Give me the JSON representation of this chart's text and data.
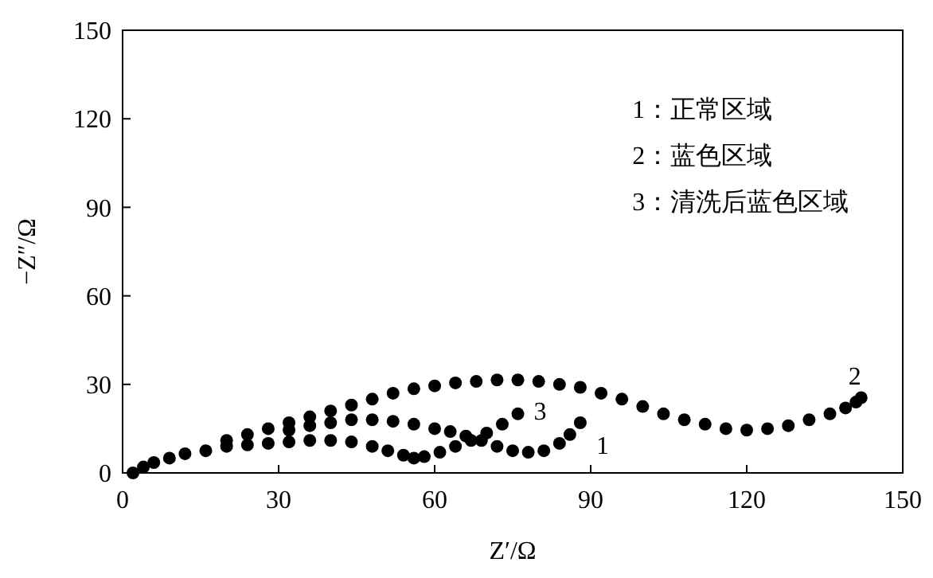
{
  "chart_data": {
    "type": "scatter",
    "xlabel": "Z′/Ω",
    "ylabel": "−Z″/Ω",
    "xlim": [
      0,
      150
    ],
    "ylim": [
      0,
      150
    ],
    "xticks": [
      0,
      30,
      60,
      90,
      120,
      150
    ],
    "yticks": [
      0,
      30,
      60,
      90,
      120,
      150
    ],
    "grid": false,
    "marker": "circle",
    "annotations": [
      "1：正常区域",
      "2：蓝色区域",
      "3：清洗后蓝色区域"
    ],
    "series": [
      {
        "name": "1",
        "color": "#000000",
        "x": [
          32,
          36,
          40,
          44,
          48,
          52,
          56,
          60,
          63,
          66,
          69,
          72,
          75,
          78,
          81,
          84,
          86,
          88
        ],
        "values": [
          14.5,
          16,
          17,
          18,
          18,
          17.5,
          16.5,
          15,
          14,
          12.5,
          11,
          9,
          7.5,
          7,
          7.5,
          10,
          13,
          17
        ]
      },
      {
        "name": "2",
        "color": "#000000",
        "x": [
          2,
          4,
          6,
          9,
          12,
          20,
          24,
          28,
          32,
          36,
          40,
          44,
          48,
          52,
          56,
          60,
          64,
          68,
          72,
          76,
          80,
          84,
          88,
          92,
          96,
          100,
          104,
          108,
          112,
          116,
          120,
          124,
          128,
          132,
          136,
          139,
          141,
          142
        ],
        "values": [
          0,
          2,
          3.5,
          5,
          6.5,
          11,
          13,
          15,
          17,
          19,
          21,
          23,
          25,
          27,
          28.5,
          29.5,
          30.5,
          31,
          31.5,
          31.5,
          31,
          30,
          29,
          27,
          25,
          22.5,
          20,
          18,
          16.5,
          15,
          14.5,
          15,
          16,
          18,
          20,
          22,
          24,
          25.5
        ]
      },
      {
        "name": "3",
        "color": "#000000",
        "x": [
          16,
          20,
          24,
          28,
          32,
          36,
          40,
          44,
          48,
          51,
          54,
          56,
          58,
          61,
          64,
          67,
          70,
          73,
          76
        ],
        "values": [
          7.5,
          9,
          9.5,
          10,
          10.5,
          11,
          11,
          10.5,
          9,
          7.5,
          6,
          5,
          5.5,
          7,
          9,
          11,
          13.5,
          16.5,
          20
        ]
      }
    ]
  }
}
